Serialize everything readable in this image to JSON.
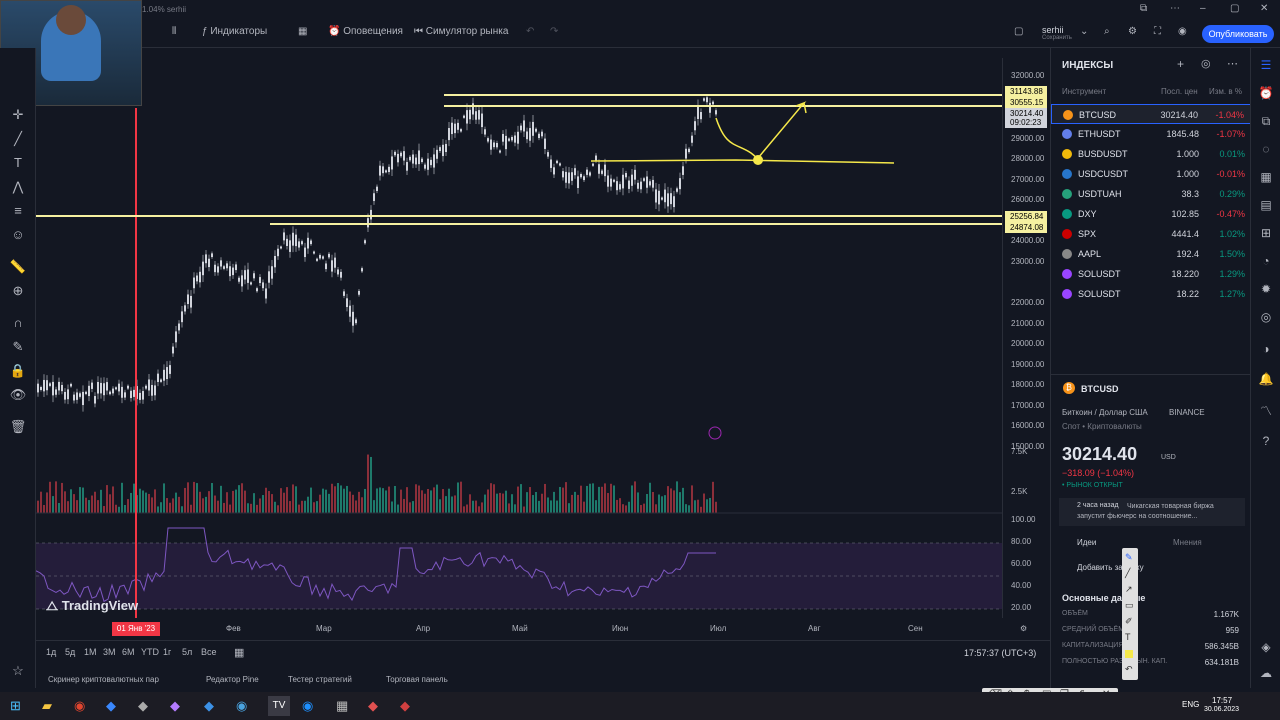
{
  "titlebar": {
    "pct": "1.04% serhii"
  },
  "toolbar": {
    "indicators": "Индикаторы",
    "alerts": "Оповещения",
    "replay": "Симулятор рынка",
    "user": "serhii",
    "user_sub": "Сохранить",
    "publish": "Опубликовать"
  },
  "price_axis": [
    "32000.00",
    "29000.00",
    "28000.00",
    "27000.00",
    "26000.00",
    "24000.00",
    "23000.00",
    "22000.00",
    "21000.00",
    "20000.00",
    "19000.00",
    "18000.00",
    "17000.00",
    "16000.00",
    "15000.00"
  ],
  "price_tags": [
    {
      "v": "31143.88",
      "bg": "#f5f0a0"
    },
    {
      "v": "30555.15",
      "bg": "#f5f0a0"
    },
    {
      "v": "30214.40",
      "bg": "#d1d4dc"
    },
    {
      "v": "09:02:23",
      "bg": "#d1d4dc"
    },
    {
      "v": "25256.84",
      "bg": "#f5f0a0"
    },
    {
      "v": "24874.08",
      "bg": "#f5f0a0"
    }
  ],
  "volume_axis": [
    "7.5K",
    "2.5K"
  ],
  "rsi_axis": [
    "100.00",
    "80.00",
    "60.00",
    "40.00",
    "20.00"
  ],
  "time_axis": {
    "cursor": "01 Янв '23",
    "labels": [
      "Фев",
      "Мар",
      "Апр",
      "Май",
      "Июн",
      "Июл",
      "Авг",
      "Сен"
    ]
  },
  "logo": "TradingView",
  "ranges": [
    "1д",
    "5д",
    "1M",
    "3M",
    "6M",
    "YTD",
    "1г",
    "5л",
    "Все"
  ],
  "clock": "17:57:37 (UTC+3)",
  "bottom_tabs": [
    "Скринер криптовалютных пар",
    "Редактор Pine",
    "Тестер стратегий",
    "Торговая панель"
  ],
  "watchlist": {
    "title": "ИНДЕКСЫ",
    "col_symbol": "Инструмент",
    "col_last": "Посл. цен",
    "col_chg": "Изм. в %",
    "rows": [
      {
        "sym": "BTCUSD",
        "last": "30214.40",
        "chg": "-1.04%",
        "color": "#f7931a",
        "neg": true
      },
      {
        "sym": "ETHUSDT",
        "last": "1845.48",
        "chg": "-1.07%",
        "color": "#627eea",
        "neg": true
      },
      {
        "sym": "BUSDUSDT",
        "last": "1.000",
        "chg": "0.01%",
        "color": "#f0b90b",
        "neg": false
      },
      {
        "sym": "USDCUSDT",
        "last": "1.000",
        "chg": "-0.01%",
        "color": "#2775ca",
        "neg": true
      },
      {
        "sym": "USDTUAH",
        "last": "38.3",
        "chg": "0.29%",
        "color": "#26a17b",
        "neg": false
      },
      {
        "sym": "DXY",
        "last": "102.85",
        "chg": "-0.47%",
        "color": "#089981",
        "neg": true
      },
      {
        "sym": "SPX",
        "last": "4441.4",
        "chg": "1.02%",
        "color": "#cc0000",
        "neg": false
      },
      {
        "sym": "AAPL",
        "last": "192.4",
        "chg": "1.50%",
        "color": "#888888",
        "neg": false
      },
      {
        "sym": "SOLUSDT",
        "last": "18.220",
        "chg": "1.29%",
        "color": "#9945ff",
        "neg": false
      },
      {
        "sym": "SOLUSDT",
        "last": "18.22",
        "chg": "1.27%",
        "color": "#9945ff",
        "neg": false
      }
    ]
  },
  "details": {
    "symbol": "BTCUSD",
    "name": "Биткоин / Доллар США",
    "exchange": "BINANCE",
    "type": "Спот • Криптовалюты",
    "price": "30214.40",
    "ccy": "USD",
    "change": "−318.09 (−1.04%)",
    "status": "• РЫНОК ОТКРЫТ",
    "news_time": "2 часа назад",
    "news": "Чикагская товарная биржа запустит фьючерс на соотношение...",
    "ideas": "Идеи",
    "opinions": "Мнения",
    "add_note": "Добавить заметку",
    "key_data": "Основные данные",
    "stats": [
      {
        "k": "ОБЪЁМ",
        "v": "1.167K"
      },
      {
        "k": "СРЕДНИЙ ОБЪЁМ",
        "v": "959"
      },
      {
        "k": "КАПИТАЛИЗАЦИЯ",
        "v": "586.345B"
      },
      {
        "k": "ПОЛНОСТЬЮ РАЗВ. РЫН. КАП.",
        "v": "634.181B"
      }
    ]
  },
  "taskbar": {
    "lang": "ENG",
    "time": "17:57",
    "date": "30.06.2023"
  }
}
